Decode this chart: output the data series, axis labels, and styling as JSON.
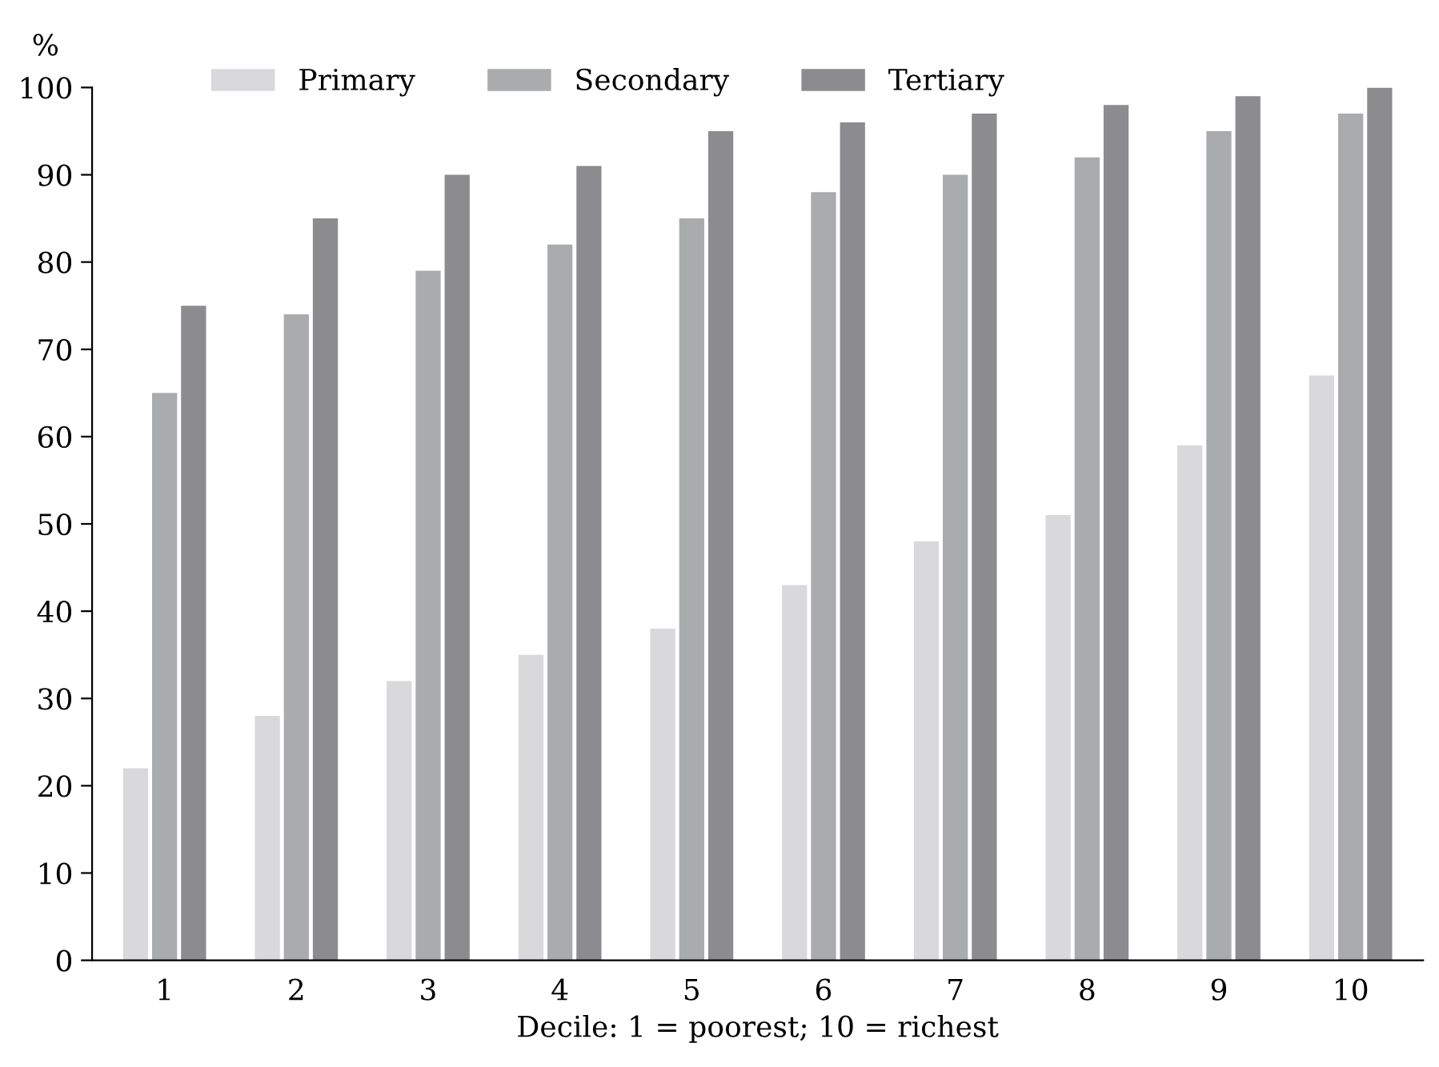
{
  "chart_data": {
    "type": "bar",
    "xlabel": "Decile: 1 = poorest; 10 = richest",
    "ylabel": "%",
    "categories": [
      "1",
      "2",
      "3",
      "4",
      "5",
      "6",
      "7",
      "8",
      "9",
      "10"
    ],
    "series": [
      {
        "name": "Primary",
        "color": "#d9d9db",
        "values": [
          22,
          28,
          32,
          35,
          38,
          43,
          48,
          51,
          59,
          67
        ]
      },
      {
        "name": "Secondary",
        "color": "#aaabad",
        "values": [
          65,
          74,
          79,
          82,
          85,
          88,
          90,
          92,
          95,
          97
        ]
      },
      {
        "name": "Tertiary",
        "color": "#8c8c8f",
        "values": [
          75,
          85,
          90,
          91,
          95,
          96,
          97,
          98,
          99,
          100
        ]
      }
    ],
    "ylim": [
      0,
      100
    ],
    "yticks": [
      0,
      10,
      20,
      30,
      40,
      50,
      60,
      70,
      80,
      90,
      100
    ],
    "grid": false,
    "legend": "top left"
  }
}
